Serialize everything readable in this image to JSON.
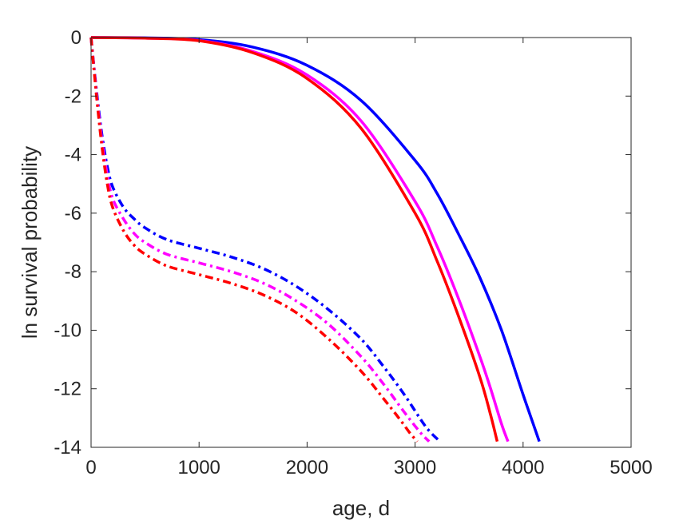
{
  "chart_data": {
    "type": "line",
    "title": "",
    "xlabel": "age, d",
    "ylabel": "ln survival probability",
    "xlim": [
      0,
      5000
    ],
    "ylim": [
      -14,
      0
    ],
    "xticks": [
      0,
      1000,
      2000,
      3000,
      4000,
      5000
    ],
    "yticks": [
      0,
      -2,
      -4,
      -6,
      -8,
      -10,
      -12,
      -14
    ],
    "xtick_labels": [
      "0",
      "1000",
      "2000",
      "3000",
      "4000",
      "5000"
    ],
    "ytick_labels": [
      "0",
      "-2",
      "-4",
      "-6",
      "-8",
      "-10",
      "-12",
      "-14"
    ],
    "grid": false,
    "legend": "none",
    "series": [
      {
        "color": "#0000ff",
        "style": "solid",
        "x": [
          0,
          500,
          1000,
          1500,
          2000,
          2500,
          3000,
          3200,
          3400,
          3600,
          3800,
          4000,
          4150
        ],
        "y": [
          0,
          -0.01,
          -0.07,
          -0.33,
          -0.95,
          -2.15,
          -4.2,
          -5.3,
          -6.7,
          -8.2,
          -10.0,
          -12.2,
          -13.8
        ]
      },
      {
        "color": "#ff00ff",
        "style": "solid",
        "x": [
          0,
          500,
          1000,
          1500,
          2000,
          2500,
          3000,
          3200,
          3400,
          3600,
          3700,
          3800,
          3860
        ],
        "y": [
          0,
          -0.02,
          -0.1,
          -0.48,
          -1.28,
          -2.85,
          -5.6,
          -7.1,
          -8.9,
          -10.9,
          -12.0,
          -13.2,
          -13.8
        ]
      },
      {
        "color": "#ff0000",
        "style": "solid",
        "x": [
          0,
          500,
          1000,
          1500,
          2000,
          2500,
          3000,
          3200,
          3400,
          3600,
          3700,
          3760
        ],
        "y": [
          0,
          -0.02,
          -0.11,
          -0.52,
          -1.4,
          -3.1,
          -6.0,
          -7.6,
          -9.5,
          -11.6,
          -12.9,
          -13.8
        ]
      },
      {
        "color": "#0000ff",
        "style": "dashdot",
        "x": [
          0,
          50,
          100,
          150,
          200,
          300,
          400,
          500,
          700,
          1000,
          1300,
          1600,
          1900,
          2200,
          2500,
          2700,
          2900,
          3100,
          3230
        ],
        "y": [
          0,
          -1.8,
          -3.3,
          -4.4,
          -5.1,
          -5.8,
          -6.2,
          -6.5,
          -6.9,
          -7.2,
          -7.5,
          -7.9,
          -8.5,
          -9.3,
          -10.3,
          -11.2,
          -12.2,
          -13.3,
          -13.8
        ]
      },
      {
        "color": "#ff00ff",
        "style": "dashdot",
        "x": [
          0,
          50,
          100,
          150,
          200,
          300,
          400,
          500,
          700,
          1000,
          1300,
          1600,
          1900,
          2200,
          2500,
          2700,
          2900,
          3050,
          3130
        ],
        "y": [
          0,
          -1.9,
          -3.5,
          -4.7,
          -5.5,
          -6.2,
          -6.7,
          -7.0,
          -7.4,
          -7.7,
          -8.0,
          -8.4,
          -9.0,
          -9.8,
          -10.9,
          -11.8,
          -12.8,
          -13.5,
          -13.8
        ]
      },
      {
        "color": "#ff0000",
        "style": "dashdot",
        "x": [
          0,
          50,
          100,
          150,
          200,
          300,
          400,
          500,
          700,
          1000,
          1300,
          1600,
          1900,
          2200,
          2500,
          2700,
          2850,
          2950,
          3020
        ],
        "y": [
          0,
          -2.0,
          -3.7,
          -5.0,
          -5.8,
          -6.6,
          -7.1,
          -7.4,
          -7.8,
          -8.1,
          -8.4,
          -8.8,
          -9.4,
          -10.3,
          -11.4,
          -12.3,
          -13.0,
          -13.5,
          -13.8
        ]
      }
    ]
  }
}
